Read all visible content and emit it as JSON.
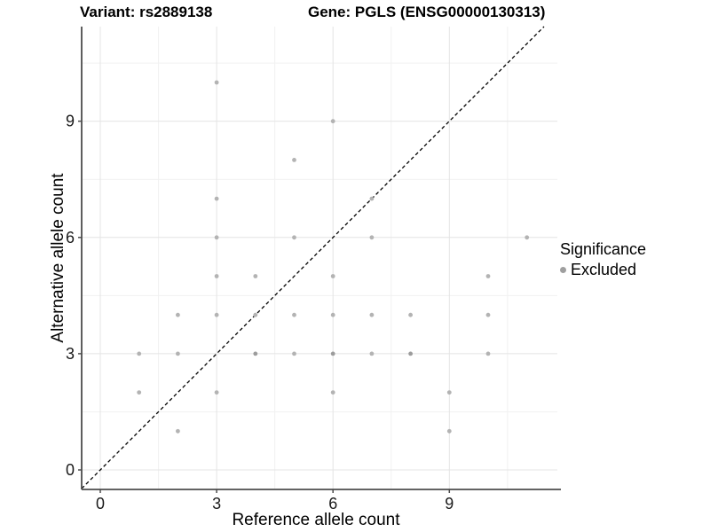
{
  "title": {
    "variant": "Variant: rs2889138",
    "gene": "Gene: PGLS (ENSG00000130313)"
  },
  "axes": {
    "x": {
      "label": "Reference allele count",
      "ticks": [
        0,
        3,
        6,
        9
      ],
      "minor_ticks": [
        1.5,
        4.5,
        7.5,
        10.5
      ],
      "range": [
        -0.5,
        11.5
      ]
    },
    "y": {
      "label": "Alternative allele count",
      "ticks": [
        0,
        3,
        6,
        9
      ],
      "minor_ticks": [
        1.5,
        4.5,
        7.5,
        10.5
      ],
      "range": [
        -0.5,
        11.5
      ]
    }
  },
  "legend": {
    "title": "Significance",
    "items": [
      {
        "label": "Excluded",
        "color": "#b0b0b0"
      }
    ]
  },
  "chart_data": {
    "type": "scatter",
    "title": "Variant: rs2889138 / Gene: PGLS (ENSG00000130313)",
    "xlabel": "Reference allele count",
    "ylabel": "Alternative allele count",
    "xlim": [
      -0.5,
      11.5
    ],
    "ylim": [
      -0.5,
      11.5
    ],
    "grid": true,
    "legend_position": "right",
    "series": [
      {
        "name": "Excluded",
        "color": "#b3b3b3",
        "points": [
          [
            3,
            10
          ],
          [
            6,
            9
          ],
          [
            5,
            8
          ],
          [
            3,
            7
          ],
          [
            7,
            7
          ],
          [
            3,
            6
          ],
          [
            5,
            6
          ],
          [
            7,
            6
          ],
          [
            11,
            6
          ],
          [
            3,
            5
          ],
          [
            4,
            5
          ],
          [
            6,
            5
          ],
          [
            10,
            5
          ],
          [
            2,
            4
          ],
          [
            3,
            4
          ],
          [
            4,
            4
          ],
          [
            5,
            4
          ],
          [
            6,
            4
          ],
          [
            7,
            4
          ],
          [
            8,
            4
          ],
          [
            10,
            4
          ],
          [
            1,
            3
          ],
          [
            2,
            3
          ],
          [
            4,
            3
          ],
          [
            5,
            3
          ],
          [
            6,
            3
          ],
          [
            7,
            3
          ],
          [
            8,
            3
          ],
          [
            10,
            3
          ],
          [
            1,
            2
          ],
          [
            3,
            2
          ],
          [
            6,
            2
          ],
          [
            9,
            2
          ],
          [
            2,
            1
          ],
          [
            9,
            1
          ]
        ],
        "overplotted_points": [
          [
            4,
            3
          ],
          [
            6,
            3
          ],
          [
            8,
            3
          ]
        ]
      }
    ],
    "reference_line": {
      "type": "identity",
      "slope": 1,
      "intercept": 0,
      "style": "dashed",
      "color": "#000000"
    }
  },
  "colors": {
    "point": "#b3b3b3",
    "point_dark": "#9c9c9c",
    "grid_major": "#e4e4e4",
    "grid_minor": "#f1f1f1",
    "axis_line": "#4d4d4d",
    "tick_text": "#1a1a1a"
  }
}
